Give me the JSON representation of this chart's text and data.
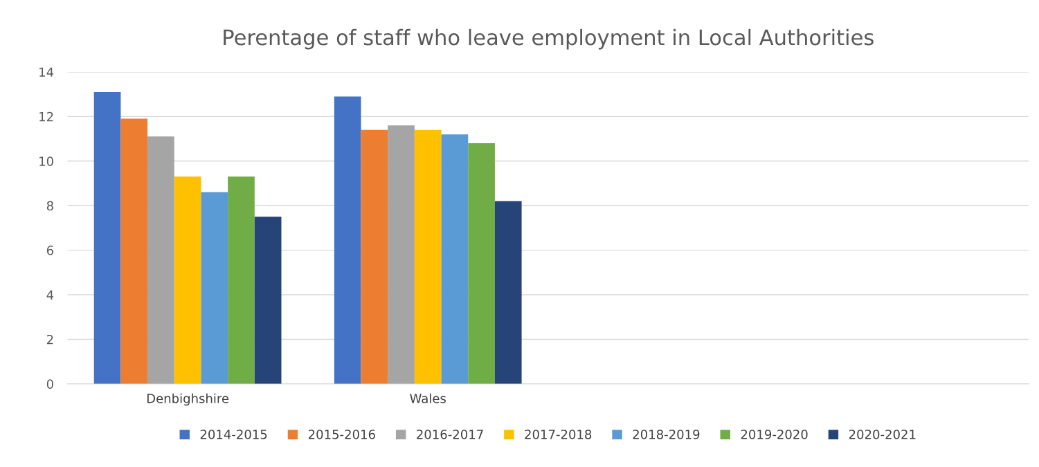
{
  "chart_data": {
    "type": "bar",
    "title": "Perentage of staff who leave employment in Local Authorities",
    "categories": [
      "Denbighshire",
      "Wales",
      null,
      null
    ],
    "series": [
      {
        "name": "2014-2015",
        "color": "#4472c4",
        "values": [
          13.1,
          12.9,
          null,
          null
        ]
      },
      {
        "name": "2015-2016",
        "color": "#ed7d31",
        "values": [
          11.9,
          11.4,
          null,
          null
        ]
      },
      {
        "name": "2016-2017",
        "color": "#a5a5a5",
        "values": [
          11.1,
          11.6,
          null,
          null
        ]
      },
      {
        "name": "2017-2018",
        "color": "#ffc000",
        "values": [
          9.3,
          11.4,
          null,
          null
        ]
      },
      {
        "name": "2018-2019",
        "color": "#5b9bd5",
        "values": [
          8.6,
          11.2,
          null,
          null
        ]
      },
      {
        "name": "2019-2020",
        "color": "#70ad47",
        "values": [
          9.3,
          10.8,
          null,
          null
        ]
      },
      {
        "name": "2020-2021",
        "color": "#264478",
        "values": [
          7.5,
          8.2,
          null,
          null
        ]
      }
    ],
    "ylim": [
      0,
      14
    ],
    "yticks": [
      0,
      2,
      4,
      6,
      8,
      10,
      12,
      14
    ],
    "grid": "y",
    "legend": "bottom"
  }
}
